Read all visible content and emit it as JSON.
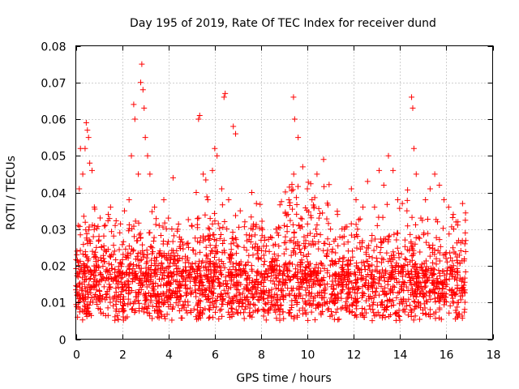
{
  "chart_data": {
    "type": "scatter",
    "title": "Day 195 of 2019, Rate Of TEC Index for receiver dund",
    "xlabel": "GPS time / hours",
    "ylabel": "ROTI / TECUs",
    "xlim": [
      0,
      18
    ],
    "ylim": [
      0,
      0.08
    ],
    "x_ticks": [
      0,
      2,
      4,
      6,
      8,
      10,
      12,
      14,
      16,
      18
    ],
    "x_tick_labels": [
      "0",
      "2",
      "4",
      "6",
      "8",
      "10",
      "12",
      "14",
      "16",
      "18"
    ],
    "y_ticks": [
      0,
      0.01,
      0.02,
      0.03,
      0.04,
      0.05,
      0.06,
      0.07,
      0.08
    ],
    "y_tick_labels": [
      "0",
      "0.01",
      "0.02",
      "0.03",
      "0.04",
      "0.05",
      "0.06",
      "0.07",
      "0.08"
    ],
    "grid": true,
    "marker": "plus",
    "series_color": "#ff0000",
    "points": [
      [
        0.05,
        0.024
      ],
      [
        0.1,
        0.031
      ],
      [
        0.15,
        0.041
      ],
      [
        0.2,
        0.052
      ],
      [
        0.3,
        0.045
      ],
      [
        0.4,
        0.052
      ],
      [
        0.45,
        0.059
      ],
      [
        0.5,
        0.057
      ],
      [
        0.55,
        0.055
      ],
      [
        0.6,
        0.048
      ],
      [
        0.7,
        0.046
      ],
      [
        0.8,
        0.036
      ],
      [
        1.0,
        0.028
      ],
      [
        1.2,
        0.022
      ],
      [
        1.4,
        0.034
      ],
      [
        1.5,
        0.036
      ],
      [
        1.7,
        0.031
      ],
      [
        1.9,
        0.029
      ],
      [
        2.1,
        0.035
      ],
      [
        2.3,
        0.038
      ],
      [
        2.4,
        0.05
      ],
      [
        2.5,
        0.064
      ],
      [
        2.55,
        0.06
      ],
      [
        2.7,
        0.045
      ],
      [
        2.8,
        0.07
      ],
      [
        2.85,
        0.075
      ],
      [
        2.9,
        0.068
      ],
      [
        2.95,
        0.063
      ],
      [
        3.0,
        0.055
      ],
      [
        3.1,
        0.05
      ],
      [
        3.2,
        0.045
      ],
      [
        3.4,
        0.036
      ],
      [
        3.6,
        0.031
      ],
      [
        3.8,
        0.038
      ],
      [
        4.0,
        0.033
      ],
      [
        4.2,
        0.044
      ],
      [
        4.4,
        0.03
      ],
      [
        4.6,
        0.022
      ],
      [
        4.8,
        0.026
      ],
      [
        5.0,
        0.031
      ],
      [
        5.2,
        0.04
      ],
      [
        5.3,
        0.06
      ],
      [
        5.35,
        0.061
      ],
      [
        5.5,
        0.045
      ],
      [
        5.7,
        0.038
      ],
      [
        5.9,
        0.046
      ],
      [
        6.0,
        0.052
      ],
      [
        6.1,
        0.05
      ],
      [
        6.3,
        0.041
      ],
      [
        6.4,
        0.066
      ],
      [
        6.45,
        0.067
      ],
      [
        6.6,
        0.038
      ],
      [
        6.8,
        0.058
      ],
      [
        6.9,
        0.056
      ],
      [
        7.1,
        0.035
      ],
      [
        7.3,
        0.032
      ],
      [
        7.6,
        0.04
      ],
      [
        7.8,
        0.037
      ],
      [
        8.0,
        0.027
      ],
      [
        8.2,
        0.024
      ],
      [
        8.5,
        0.022
      ],
      [
        8.7,
        0.029
      ],
      [
        9.0,
        0.031
      ],
      [
        9.2,
        0.038
      ],
      [
        9.4,
        0.066
      ],
      [
        9.45,
        0.06
      ],
      [
        9.6,
        0.055
      ],
      [
        9.8,
        0.047
      ],
      [
        10.0,
        0.041
      ],
      [
        10.2,
        0.038
      ],
      [
        10.5,
        0.033
      ],
      [
        10.7,
        0.049
      ],
      [
        11.0,
        0.03
      ],
      [
        11.3,
        0.034
      ],
      [
        11.6,
        0.03
      ],
      [
        11.9,
        0.041
      ],
      [
        12.1,
        0.038
      ],
      [
        12.4,
        0.036
      ],
      [
        12.6,
        0.043
      ],
      [
        12.9,
        0.036
      ],
      [
        13.1,
        0.046
      ],
      [
        13.3,
        0.042
      ],
      [
        13.5,
        0.05
      ],
      [
        13.7,
        0.046
      ],
      [
        13.9,
        0.038
      ],
      [
        14.1,
        0.037
      ],
      [
        14.3,
        0.035
      ],
      [
        14.5,
        0.066
      ],
      [
        14.55,
        0.063
      ],
      [
        14.6,
        0.052
      ],
      [
        14.7,
        0.045
      ],
      [
        14.9,
        0.033
      ],
      [
        15.1,
        0.038
      ],
      [
        15.3,
        0.041
      ],
      [
        15.5,
        0.045
      ],
      [
        15.7,
        0.042
      ],
      [
        15.9,
        0.038
      ],
      [
        16.1,
        0.036
      ],
      [
        16.3,
        0.034
      ],
      [
        16.5,
        0.032
      ],
      [
        16.7,
        0.037
      ],
      [
        16.8,
        0.026
      ]
    ]
  }
}
